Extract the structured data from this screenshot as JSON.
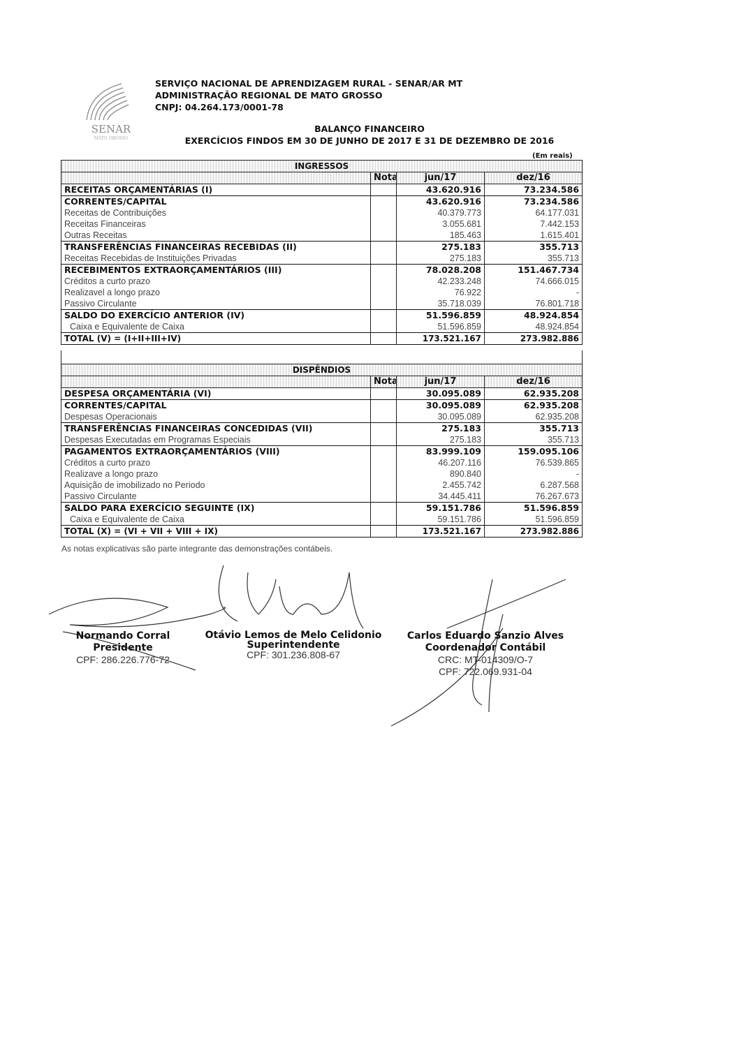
{
  "header": {
    "org": "SERVIÇO NACIONAL DE APRENDIZAGEM RURAL - SENAR/AR MT",
    "admin": "ADMINISTRAÇÃO REGIONAL DE MATO GROSSO",
    "cnpj": "CNPJ: 04.264.173/0001-78",
    "logo_text": "SENAR",
    "logo_sub": "MATO GROSSO",
    "title": "BALANÇO FINANCEIRO",
    "subtitle": "EXERCÍCIOS FINDOS EM 30 DE JUNHO DE 2017 E 31 DE DEZEMBRO DE 2016",
    "unit": "(Em reais)"
  },
  "columns": {
    "nota": "Nota",
    "jun": "jun/17",
    "dez": "dez/16"
  },
  "ingressos": {
    "title": "INGRESSOS",
    "rows": [
      {
        "label": "RECEITAS ORÇAMENTÁRIAS (I)",
        "jun": "43.620.916",
        "dez": "73.234.586",
        "style": "bold"
      },
      {
        "label": "CORRENTES/CAPITAL",
        "jun": "43.620.916",
        "dez": "73.234.586",
        "style": "bold"
      },
      {
        "label": "Receitas de Contribuições",
        "jun": "40.379.773",
        "dez": "64.177.031",
        "style": "light"
      },
      {
        "label": "Receitas Financeiras",
        "jun": "3.055.681",
        "dez": "7.442.153",
        "style": "light"
      },
      {
        "label": "Outras Receitas",
        "jun": "185.463",
        "dez": "1.615.401",
        "style": "light"
      },
      {
        "label": "TRANSFERÊNCIAS FINANCEIRAS RECEBIDAS (II)",
        "jun": "275.183",
        "dez": "355.713",
        "style": "bold"
      },
      {
        "label": "Receitas Recebidas de Instituições Privadas",
        "jun": "275.183",
        "dez": "355.713",
        "style": "light"
      },
      {
        "label": "RECEBIMENTOS EXTRAORÇAMENTÁRIOS (III)",
        "jun": "78.028.208",
        "dez": "151.467.734",
        "style": "bold"
      },
      {
        "label": "Créditos a curto prazo",
        "jun": "42.233.248",
        "dez": "74.666.015",
        "style": "light"
      },
      {
        "label": "Realizavel a longo prazo",
        "jun": "76.922",
        "dez": "-",
        "style": "light"
      },
      {
        "label": "Passivo Circulante",
        "jun": "35.718.039",
        "dez": "76.801.718",
        "style": "light"
      },
      {
        "label": "SALDO DO EXERCÍCIO ANTERIOR (IV)",
        "jun": "51.596.859",
        "dez": "48.924.854",
        "style": "bold"
      },
      {
        "label": "Caixa e Equivalente de Caixa",
        "jun": "51.596.859",
        "dez": "48.924.854",
        "style": "light indent"
      },
      {
        "label": "TOTAL (V) = (I+II+III+IV)",
        "jun": "173.521.167",
        "dez": "273.982.886",
        "style": "total"
      }
    ]
  },
  "dispendios": {
    "title": "DISPÊNDIOS",
    "rows": [
      {
        "label": "DESPESA ORÇAMENTÁRIA (VI)",
        "jun": "30.095.089",
        "dez": "62.935.208",
        "style": "bold"
      },
      {
        "label": "CORRENTES/CAPITAL",
        "jun": "30.095.089",
        "dez": "62.935.208",
        "style": "bold"
      },
      {
        "label": "Despesas Operacionais",
        "jun": "30.095.089",
        "dez": "62.935.208",
        "style": "light"
      },
      {
        "label": "TRANSFERÊNCIAS FINANCEIRAS CONCEDIDAS (VII)",
        "jun": "275.183",
        "dez": "355.713",
        "style": "bold"
      },
      {
        "label": "Despesas Executadas em Programas Especiais",
        "jun": "275.183",
        "dez": "355.713",
        "style": "light"
      },
      {
        "label": "PAGAMENTOS EXTRAORÇAMENTÁRIOS (VIII)",
        "jun": "83.999.109",
        "dez": "159.095.106",
        "style": "bold"
      },
      {
        "label": "Créditos a curto prazo",
        "jun": "46.207.116",
        "dez": "76.539.865",
        "style": "light"
      },
      {
        "label": "Realizave a longo prazo",
        "jun": "890.840",
        "dez": "-",
        "style": "light"
      },
      {
        "label": "Aquisição de imobilizado no Periodo",
        "jun": "2.455.742",
        "dez": "6.287.568",
        "style": "light"
      },
      {
        "label": "Passivo Circulante",
        "jun": "34.445.411",
        "dez": "76.267.673",
        "style": "light"
      },
      {
        "label": "SALDO PARA EXERCÍCIO SEGUINTE (IX)",
        "jun": "59.151.786",
        "dez": "51.596.859",
        "style": "bold"
      },
      {
        "label": "Caixa e Equivalente de Caixa",
        "jun": "59.151.786",
        "dez": "51.596.859",
        "style": "light indent"
      },
      {
        "label": "TOTAL (X) = (VI + VII + VIII + IX)",
        "jun": "173.521.167",
        "dez": "273.982.886",
        "style": "total"
      }
    ]
  },
  "footnote": "As notas explicativas são parte integrante das demonstrações contábeis.",
  "signatures": [
    {
      "name": "Normando Corral",
      "role": "Presidente",
      "lines": [
        "CPF: 286.226.776-72"
      ]
    },
    {
      "name": "Otávio Lemos de Melo Celidonio",
      "role": "Superintendente",
      "lines": [
        "CPF: 301.236.808-67"
      ]
    },
    {
      "name": "Carlos Eduardo Sanzio Alves",
      "role": "Coordenador Contábil",
      "lines": [
        "CRC: MT-014309/O-7",
        "CPF: 722.069.931-04"
      ]
    }
  ]
}
